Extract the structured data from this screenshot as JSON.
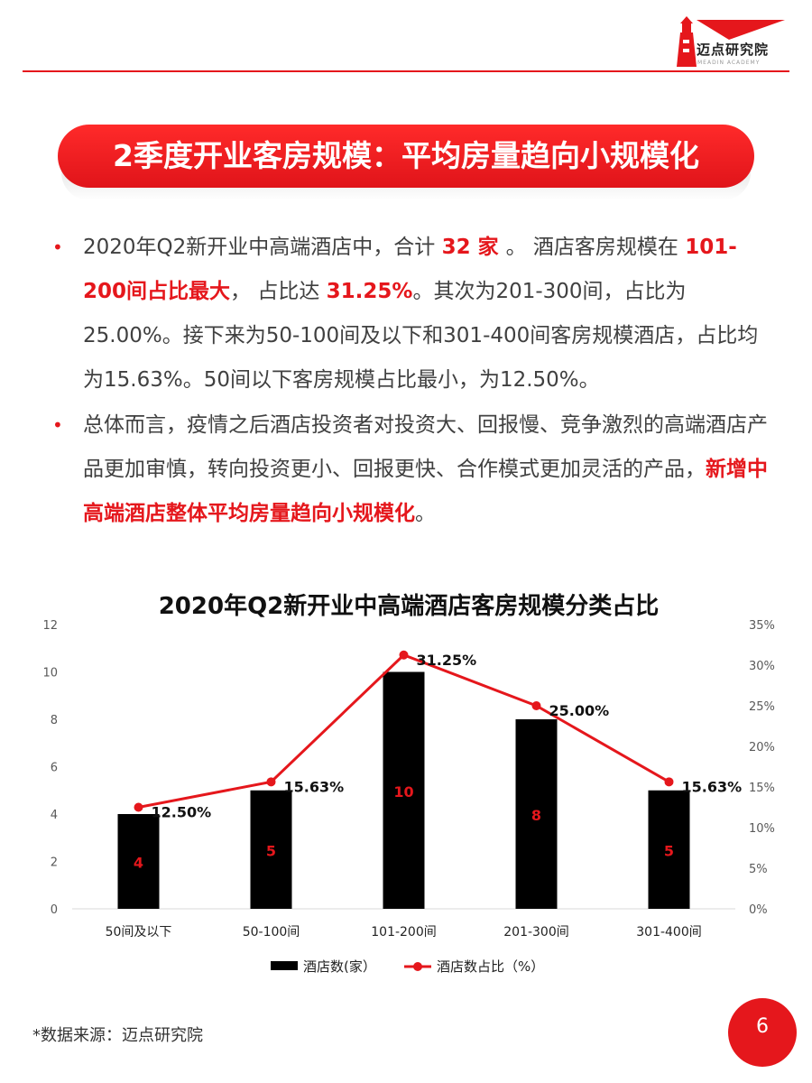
{
  "header": {
    "brand_name": "迈点研究院",
    "brand_sub": "MEADIN ACADEMY",
    "brand_color": "#e5171c"
  },
  "title": "2季度开业客房规模：平均房量趋向小规模化",
  "bullets": [
    {
      "segments": [
        {
          "text": "2020年Q2新开业中高端酒店中，合计 ",
          "hl": false
        },
        {
          "text": "32 家 ",
          "hl": true
        },
        {
          "text": "。 酒店客房规模在 ",
          "hl": false
        },
        {
          "text": "101-200间占比最大",
          "hl": true
        },
        {
          "text": "， 占比达 ",
          "hl": false
        },
        {
          "text": "31.25%",
          "hl": true
        },
        {
          "text": "。其次为201-300间，占比为25.00%。接下来为50-100间及以下和301-400间客房规模酒店，占比均为15.63%。50间以下客房规模占比最小，为12.50%。",
          "hl": false
        }
      ]
    },
    {
      "segments": [
        {
          "text": "总体而言，疫情之后酒店投资者对投资大、回报慢、竞争激烈的高端酒店产品更加审慎，转向投资更小、回报更快、合作模式更加灵活的产品，",
          "hl": false
        },
        {
          "text": "新增中高端酒店整体平均房量趋向小规模化",
          "hl": true
        },
        {
          "text": "。",
          "hl": false
        }
      ]
    }
  ],
  "chart_data": {
    "type": "bar",
    "title": "2020年Q2新开业中高端酒店客房规模分类占比",
    "categories": [
      "50间及以下",
      "50-100间",
      "101-200间",
      "201-300间",
      "301-400间"
    ],
    "series": [
      {
        "name": "酒店数(家）",
        "type": "bar",
        "axis": "left",
        "values": [
          4,
          5,
          10,
          8,
          5
        ],
        "color": "#000000",
        "label_color": "#e5171c"
      },
      {
        "name": "酒店数占比（%）",
        "type": "line",
        "axis": "right",
        "values": [
          12.5,
          15.63,
          31.25,
          25.0,
          15.63
        ],
        "labels": [
          "12.50%",
          "15.63%",
          "31.25%",
          "25.00%",
          "15.63%"
        ],
        "color": "#e5171c"
      }
    ],
    "y_left": {
      "min": 0,
      "max": 12,
      "ticks": [
        "0",
        "2",
        "4",
        "6",
        "8",
        "10",
        "12"
      ]
    },
    "y_right": {
      "min": 0,
      "max": 35,
      "ticks": [
        "0%",
        "5%",
        "10%",
        "15%",
        "20%",
        "25%",
        "30%",
        "35%"
      ]
    },
    "grid": false,
    "legend": "bottom"
  },
  "footer": {
    "source": "*数据来源：迈点研究院",
    "page_number": "6"
  }
}
